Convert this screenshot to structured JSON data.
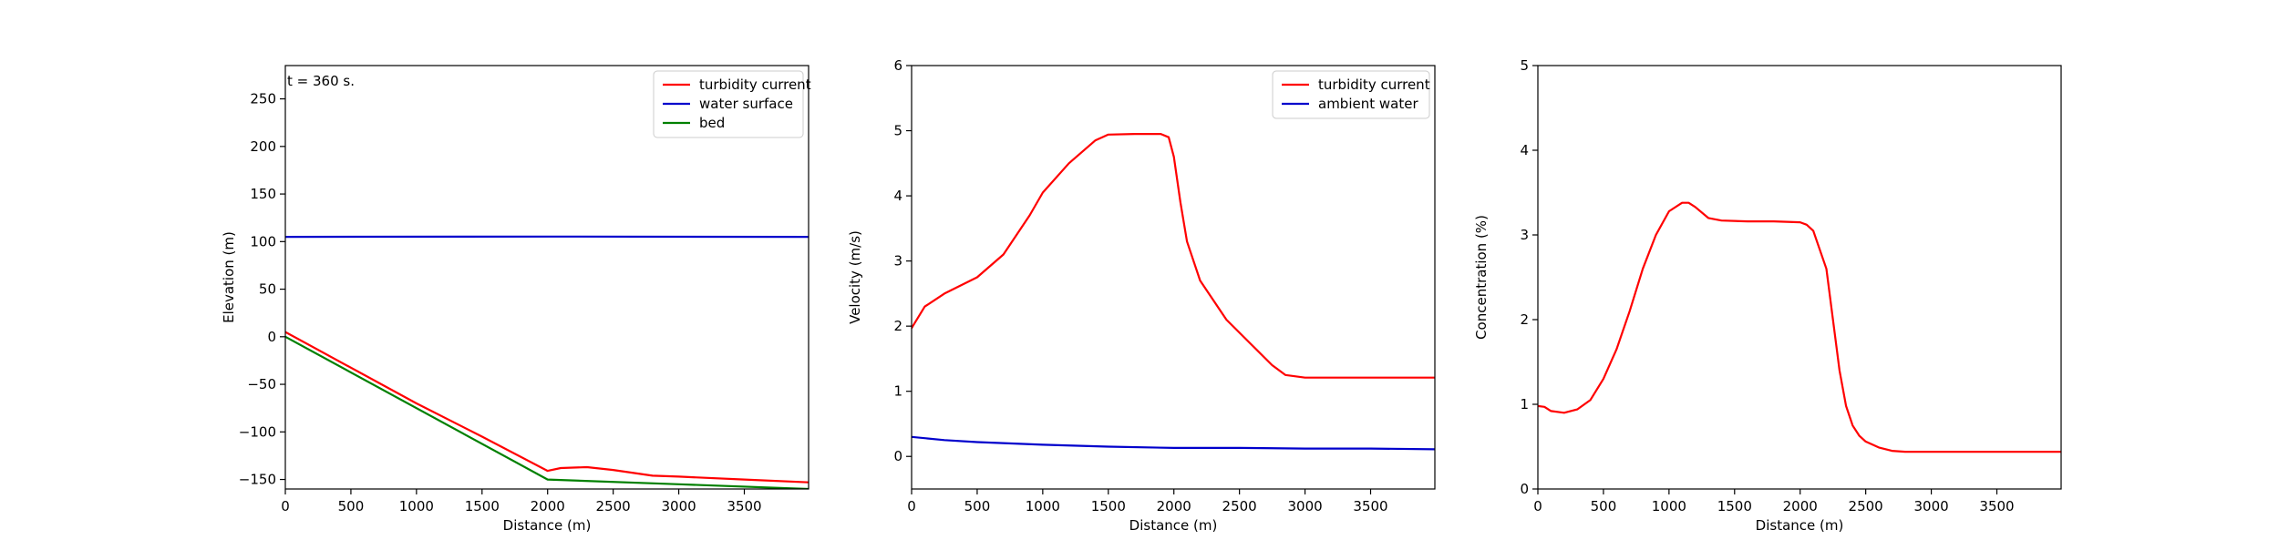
{
  "chart_data": [
    {
      "type": "line",
      "name": "elevation",
      "xlabel": "Distance (m)",
      "ylabel": "Elevation (m)",
      "xlim": [
        0,
        3990
      ],
      "ylim": [
        -160,
        285
      ],
      "xticks": [
        0,
        500,
        1000,
        1500,
        2000,
        2500,
        3000,
        3500
      ],
      "xtick_labels": [
        "0",
        "500",
        "1000",
        "1500",
        "2000",
        "2500",
        "3000",
        "3500"
      ],
      "yticks": [
        -150,
        -100,
        -50,
        0,
        50,
        100,
        150,
        200,
        250
      ],
      "ytick_labels": [
        "−150",
        "−100",
        "−50",
        "0",
        "50",
        "100",
        "150",
        "200",
        "250"
      ],
      "annotation": "t = 360 s.",
      "legend_position": "upper-right",
      "series": [
        {
          "name": "turbidity current",
          "color": "#ff0000",
          "x": [
            0,
            1000,
            1500,
            2000,
            2100,
            2300,
            2500,
            2800,
            3000,
            3500,
            3990
          ],
          "y": [
            5,
            -70,
            -105,
            -141,
            -138,
            -137,
            -140,
            -146,
            -147,
            -150,
            -153
          ]
        },
        {
          "name": "water surface",
          "color": "#0000cc",
          "x": [
            0,
            2000,
            3990
          ],
          "y": [
            105,
            105.3,
            105
          ]
        },
        {
          "name": "bed",
          "color": "#008000",
          "x": [
            0,
            2000,
            3000,
            3990
          ],
          "y": [
            0,
            -150,
            -155,
            -160
          ]
        }
      ]
    },
    {
      "type": "line",
      "name": "velocity",
      "xlabel": "Distance (m)",
      "ylabel": "Velocity (m/s)",
      "xlim": [
        0,
        3990
      ],
      "ylim": [
        -0.5,
        6
      ],
      "xticks": [
        0,
        500,
        1000,
        1500,
        2000,
        2500,
        3000,
        3500
      ],
      "xtick_labels": [
        "0",
        "500",
        "1000",
        "1500",
        "2000",
        "2500",
        "3000",
        "3500"
      ],
      "yticks": [
        0,
        1,
        2,
        3,
        4,
        5,
        6
      ],
      "ytick_labels": [
        "0",
        "1",
        "2",
        "3",
        "4",
        "5",
        "6"
      ],
      "legend_position": "upper-right",
      "series": [
        {
          "name": "turbidity current",
          "color": "#ff0000",
          "x": [
            0,
            100,
            250,
            500,
            700,
            900,
            1000,
            1200,
            1400,
            1500,
            1700,
            1900,
            1960,
            2000,
            2050,
            2100,
            2200,
            2400,
            2600,
            2750,
            2850,
            3000,
            3500,
            3990
          ],
          "y": [
            1.97,
            2.3,
            2.5,
            2.75,
            3.1,
            3.7,
            4.05,
            4.5,
            4.85,
            4.94,
            4.95,
            4.95,
            4.9,
            4.6,
            3.9,
            3.3,
            2.7,
            2.1,
            1.7,
            1.4,
            1.25,
            1.21,
            1.21,
            1.21
          ]
        },
        {
          "name": "ambient water",
          "color": "#0000cc",
          "x": [
            0,
            250,
            500,
            1000,
            1500,
            2000,
            2500,
            3000,
            3500,
            3990
          ],
          "y": [
            0.3,
            0.25,
            0.22,
            0.18,
            0.15,
            0.13,
            0.13,
            0.12,
            0.12,
            0.11
          ]
        }
      ]
    },
    {
      "type": "line",
      "name": "concentration",
      "xlabel": "Distance (m)",
      "ylabel": "Concentration (%)",
      "xlim": [
        0,
        3990
      ],
      "ylim": [
        0,
        5
      ],
      "xticks": [
        0,
        500,
        1000,
        1500,
        2000,
        2500,
        3000,
        3500
      ],
      "xtick_labels": [
        "0",
        "500",
        "1000",
        "1500",
        "2000",
        "2500",
        "3000",
        "3500"
      ],
      "yticks": [
        0,
        1,
        2,
        3,
        4,
        5
      ],
      "ytick_labels": [
        "0",
        "1",
        "2",
        "3",
        "4",
        "5"
      ],
      "series": [
        {
          "name": "concentration",
          "color": "#ff0000",
          "x": [
            0,
            50,
            100,
            200,
            300,
            400,
            500,
            600,
            700,
            800,
            900,
            1000,
            1100,
            1150,
            1200,
            1300,
            1400,
            1600,
            1800,
            2000,
            2050,
            2100,
            2200,
            2250,
            2300,
            2350,
            2400,
            2450,
            2500,
            2600,
            2700,
            2800,
            3000,
            3500,
            3990
          ],
          "y": [
            0.98,
            0.97,
            0.92,
            0.9,
            0.94,
            1.05,
            1.3,
            1.65,
            2.1,
            2.6,
            3.0,
            3.28,
            3.38,
            3.38,
            3.33,
            3.2,
            3.17,
            3.16,
            3.16,
            3.15,
            3.12,
            3.05,
            2.6,
            2.0,
            1.4,
            0.98,
            0.75,
            0.63,
            0.56,
            0.49,
            0.45,
            0.44,
            0.44,
            0.44,
            0.44
          ]
        }
      ]
    }
  ]
}
